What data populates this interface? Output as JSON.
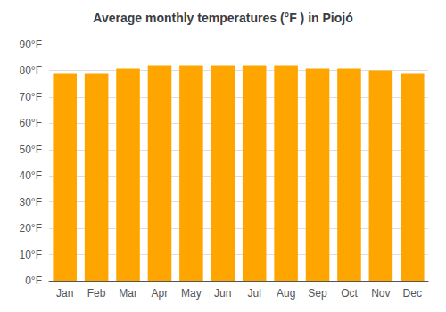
{
  "chart_data": {
    "type": "bar",
    "title": "Average monthly temperatures (°F ) in Piojó",
    "categories": [
      "Jan",
      "Feb",
      "Mar",
      "Apr",
      "May",
      "Jun",
      "Jul",
      "Aug",
      "Sep",
      "Oct",
      "Nov",
      "Dec"
    ],
    "values": [
      79,
      79,
      81,
      82,
      82,
      82,
      82,
      82,
      81,
      81,
      80,
      79
    ],
    "color": "#FFA500",
    "ylim": [
      0,
      90
    ],
    "yticks": [
      {
        "value": 0,
        "label": "0°F"
      },
      {
        "value": 10,
        "label": "10°F"
      },
      {
        "value": 20,
        "label": "20°F"
      },
      {
        "value": 30,
        "label": "30°F"
      },
      {
        "value": 40,
        "label": "40°F"
      },
      {
        "value": 50,
        "label": "50°F"
      },
      {
        "value": 60,
        "label": "60°F"
      },
      {
        "value": 70,
        "label": "70°F"
      },
      {
        "value": 80,
        "label": "80°F"
      },
      {
        "value": 90,
        "label": "90°F"
      }
    ],
    "grid": true
  }
}
